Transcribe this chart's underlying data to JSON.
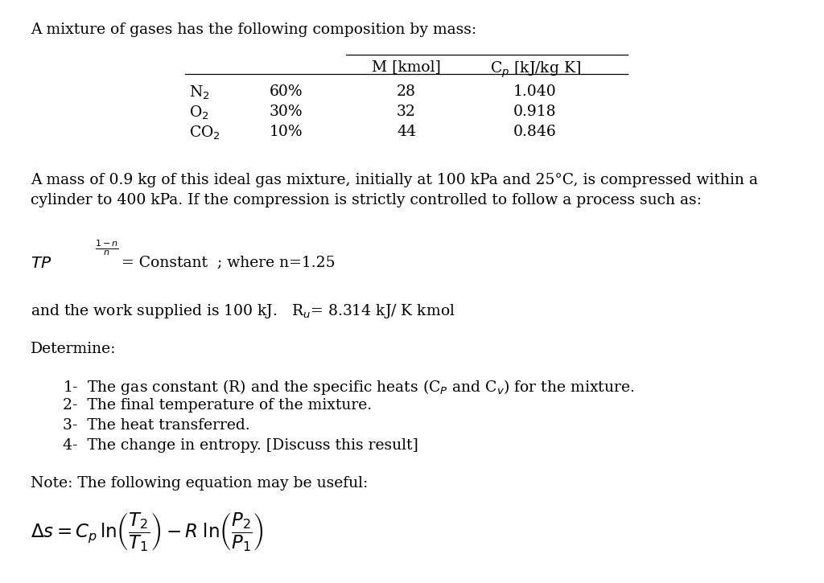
{
  "background_color": "#ffffff",
  "title_text": "A mixture of gases has the following composition by mass:",
  "font_size": 13.5,
  "font_family": "DejaVu Serif",
  "table_col1": [
    "N$_2$",
    "O$_2$",
    "CO$_2$"
  ],
  "table_col2": [
    "60%",
    "30%",
    "10%"
  ],
  "table_col3": [
    "28",
    "32",
    "44"
  ],
  "table_col4": [
    "1.040",
    "0.918",
    "0.846"
  ],
  "para1_line1": "A mass of 0.9 kg of this ideal gas mixture, initially at 100 kPa and 25°C, is compressed within a",
  "para1_line2": "cylinder to 400 kPa. If the compression is strictly controlled to follow a process such as:",
  "para2": "and the work supplied is 100 kJ.   R$_u$= 8.314 kJ/ K kmol",
  "determine": "Determine:",
  "item1": "1-  The gas constant (R) and the specific heats (C$_P$ and C$_v$) for the mixture.",
  "item2": "2-  The final temperature of the mixture.",
  "item3": "3-  The heat transferred.",
  "item4": "4-  The change in entropy. [Discuss this result]",
  "note": "Note: The following equation may be useful:"
}
